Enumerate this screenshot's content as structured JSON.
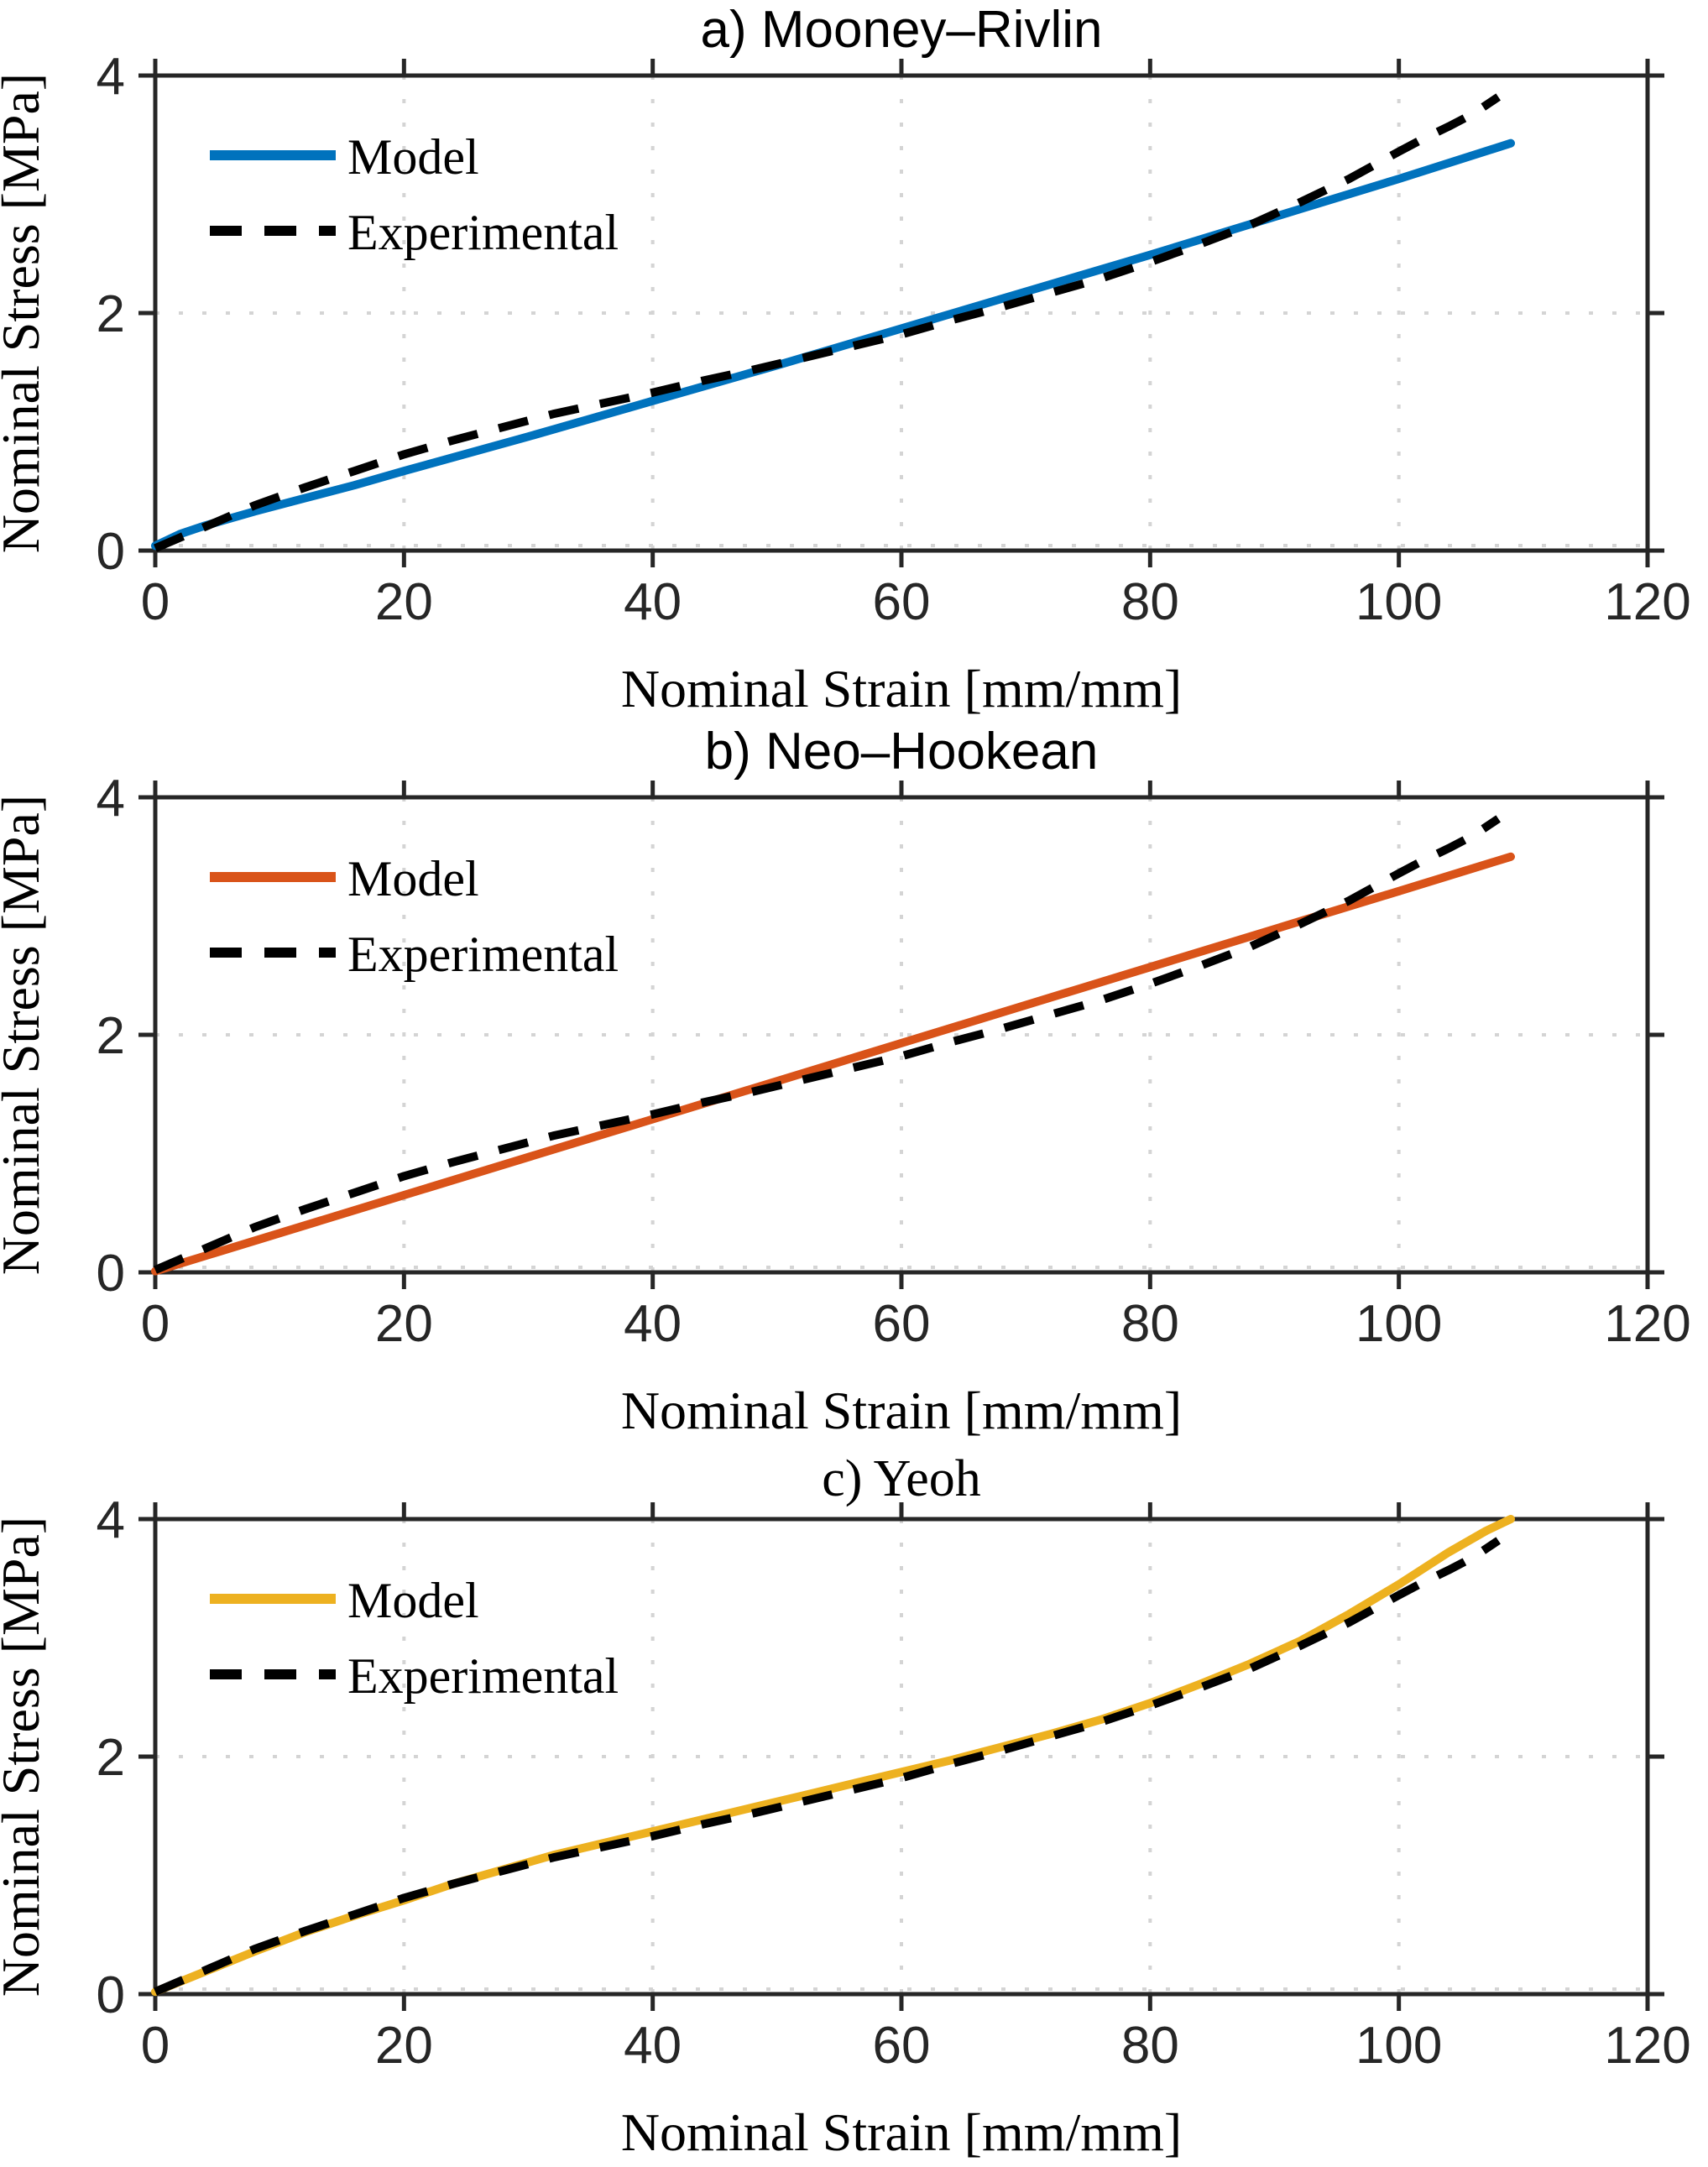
{
  "figure": {
    "background": "#ffffff",
    "axis_color": "#262626",
    "grid_color": "#d4d4d4",
    "model_colors": {
      "mooney_rivlin": "#0072bd",
      "neo_hookean": "#d95319",
      "yeoh": "#edb120"
    },
    "experimental_color": "#000000"
  },
  "chart_data": [
    {
      "type": "line",
      "title": "a) Mooney–Rivlin",
      "xlabel": "Nominal Strain [mm/mm]",
      "ylabel": "Nominal Stress [MPa]",
      "xlim": [
        0,
        120
      ],
      "ylim": [
        0,
        4
      ],
      "xticks": [
        0,
        20,
        40,
        60,
        80,
        100,
        120
      ],
      "yticks": [
        0,
        2,
        4
      ],
      "grid": "dotted",
      "legend_position": "upper-left",
      "series": [
        {
          "name": "Model",
          "color": "#0072bd",
          "style": "solid",
          "points": [
            [
              0,
              0.04
            ],
            [
              1,
              0.09
            ],
            [
              2,
              0.14
            ],
            [
              4,
              0.21
            ],
            [
              8,
              0.33
            ],
            [
              12,
              0.44
            ],
            [
              16,
              0.55
            ],
            [
              20,
              0.67
            ],
            [
              30,
              0.96
            ],
            [
              40,
              1.26
            ],
            [
              50,
              1.56
            ],
            [
              60,
              1.87
            ],
            [
              70,
              2.18
            ],
            [
              80,
              2.49
            ],
            [
              90,
              2.81
            ],
            [
              100,
              3.13
            ],
            [
              109,
              3.43
            ]
          ]
        },
        {
          "name": "Experimental",
          "color": "#000000",
          "style": "dashed",
          "points": [
            [
              0,
              0.02
            ],
            [
              4,
              0.2
            ],
            [
              8,
              0.38
            ],
            [
              12,
              0.53
            ],
            [
              16,
              0.67
            ],
            [
              20,
              0.81
            ],
            [
              24,
              0.93
            ],
            [
              28,
              1.04
            ],
            [
              32,
              1.15
            ],
            [
              36,
              1.24
            ],
            [
              40,
              1.33
            ],
            [
              44,
              1.43
            ],
            [
              48,
              1.52
            ],
            [
              52,
              1.62
            ],
            [
              56,
              1.72
            ],
            [
              60,
              1.82
            ],
            [
              64,
              1.94
            ],
            [
              68,
              2.05
            ],
            [
              72,
              2.17
            ],
            [
              76,
              2.29
            ],
            [
              80,
              2.43
            ],
            [
              84,
              2.58
            ],
            [
              88,
              2.74
            ],
            [
              92,
              2.93
            ],
            [
              96,
              3.13
            ],
            [
              100,
              3.36
            ],
            [
              102,
              3.47
            ],
            [
              104,
              3.57
            ],
            [
              106,
              3.68
            ],
            [
              108,
              3.82
            ]
          ]
        }
      ]
    },
    {
      "type": "line",
      "title": "b) Neo–Hookean",
      "xlabel": "Nominal Strain [mm/mm]",
      "ylabel": "Nominal Stress [MPa]",
      "xlim": [
        0,
        120
      ],
      "ylim": [
        0,
        4
      ],
      "xticks": [
        0,
        20,
        40,
        60,
        80,
        100,
        120
      ],
      "yticks": [
        0,
        2,
        4
      ],
      "grid": "dotted",
      "legend_position": "upper-left",
      "series": [
        {
          "name": "Model",
          "color": "#d95319",
          "style": "solid",
          "points": [
            [
              0,
              0.01
            ],
            [
              20,
              0.65
            ],
            [
              40,
              1.29
            ],
            [
              60,
              1.93
            ],
            [
              80,
              2.57
            ],
            [
              100,
              3.21
            ],
            [
              109,
              3.5
            ]
          ]
        },
        {
          "name": "Experimental",
          "color": "#000000",
          "style": "dashed",
          "points": [
            [
              0,
              0.02
            ],
            [
              4,
              0.2
            ],
            [
              8,
              0.38
            ],
            [
              12,
              0.53
            ],
            [
              16,
              0.67
            ],
            [
              20,
              0.81
            ],
            [
              24,
              0.93
            ],
            [
              28,
              1.04
            ],
            [
              32,
              1.15
            ],
            [
              36,
              1.24
            ],
            [
              40,
              1.33
            ],
            [
              44,
              1.43
            ],
            [
              48,
              1.52
            ],
            [
              52,
              1.62
            ],
            [
              56,
              1.72
            ],
            [
              60,
              1.82
            ],
            [
              64,
              1.94
            ],
            [
              68,
              2.05
            ],
            [
              72,
              2.17
            ],
            [
              76,
              2.29
            ],
            [
              80,
              2.43
            ],
            [
              84,
              2.58
            ],
            [
              88,
              2.74
            ],
            [
              92,
              2.93
            ],
            [
              96,
              3.13
            ],
            [
              100,
              3.36
            ],
            [
              102,
              3.47
            ],
            [
              104,
              3.57
            ],
            [
              106,
              3.68
            ],
            [
              108,
              3.82
            ]
          ]
        }
      ]
    },
    {
      "type": "line",
      "title": "c) Yeoh",
      "xlabel": "Nominal Strain [mm/mm]",
      "ylabel": "Nominal Stress [MPa]",
      "xlim": [
        0,
        120
      ],
      "ylim": [
        0,
        4
      ],
      "xticks": [
        0,
        20,
        40,
        60,
        80,
        100,
        120
      ],
      "yticks": [
        0,
        2,
        4
      ],
      "grid": "dotted",
      "legend_position": "upper-left",
      "series": [
        {
          "name": "Model",
          "color": "#edb120",
          "style": "solid",
          "points": [
            [
              0,
              0.02
            ],
            [
              4,
              0.19
            ],
            [
              8,
              0.36
            ],
            [
              12,
              0.52
            ],
            [
              16,
              0.66
            ],
            [
              20,
              0.79
            ],
            [
              24,
              0.93
            ],
            [
              28,
              1.05
            ],
            [
              32,
              1.17
            ],
            [
              36,
              1.27
            ],
            [
              40,
              1.37
            ],
            [
              44,
              1.47
            ],
            [
              48,
              1.57
            ],
            [
              52,
              1.67
            ],
            [
              56,
              1.77
            ],
            [
              60,
              1.87
            ],
            [
              64,
              1.97
            ],
            [
              68,
              2.08
            ],
            [
              72,
              2.19
            ],
            [
              76,
              2.31
            ],
            [
              80,
              2.45
            ],
            [
              84,
              2.61
            ],
            [
              88,
              2.78
            ],
            [
              92,
              2.97
            ],
            [
              96,
              3.2
            ],
            [
              100,
              3.45
            ],
            [
              104,
              3.72
            ],
            [
              107,
              3.9
            ],
            [
              109,
              4.0
            ]
          ]
        },
        {
          "name": "Experimental",
          "color": "#000000",
          "style": "dashed",
          "points": [
            [
              0,
              0.02
            ],
            [
              4,
              0.2
            ],
            [
              8,
              0.38
            ],
            [
              12,
              0.53
            ],
            [
              16,
              0.67
            ],
            [
              20,
              0.81
            ],
            [
              24,
              0.93
            ],
            [
              28,
              1.04
            ],
            [
              32,
              1.15
            ],
            [
              36,
              1.24
            ],
            [
              40,
              1.33
            ],
            [
              44,
              1.43
            ],
            [
              48,
              1.52
            ],
            [
              52,
              1.62
            ],
            [
              56,
              1.72
            ],
            [
              60,
              1.82
            ],
            [
              64,
              1.94
            ],
            [
              68,
              2.05
            ],
            [
              72,
              2.17
            ],
            [
              76,
              2.29
            ],
            [
              80,
              2.43
            ],
            [
              84,
              2.58
            ],
            [
              88,
              2.74
            ],
            [
              92,
              2.93
            ],
            [
              96,
              3.13
            ],
            [
              100,
              3.36
            ],
            [
              102,
              3.47
            ],
            [
              104,
              3.57
            ],
            [
              106,
              3.68
            ],
            [
              108,
              3.82
            ]
          ]
        }
      ]
    }
  ]
}
